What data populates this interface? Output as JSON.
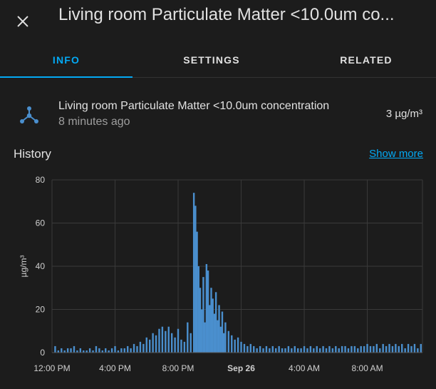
{
  "dialog": {
    "title": "Living room Particulate Matter <10.0um co...",
    "close_icon": "close-icon"
  },
  "tabs": [
    {
      "label": "INFO",
      "active": true
    },
    {
      "label": "SETTINGS",
      "active": false
    },
    {
      "label": "RELATED",
      "active": false
    }
  ],
  "entity": {
    "icon": "molecule-icon",
    "name": "Living room Particulate Matter <10.0um concentration",
    "last_changed": "8 minutes ago",
    "state": "3 µg/m³"
  },
  "history": {
    "title": "History",
    "show_more": "Show more"
  },
  "colors": {
    "accent": "#03a9f4",
    "series": "#4a8fce",
    "background": "#1c1c1c"
  },
  "chart_data": {
    "type": "bar",
    "ylabel": "µg/m³",
    "ylim": [
      0,
      80
    ],
    "yticks": [
      "0",
      "20",
      "40",
      "60",
      "80"
    ],
    "xticks": [
      "12:00 PM",
      "4:00 PM",
      "8:00 PM",
      "Sep 26",
      "4:00 AM",
      "8:00 AM"
    ],
    "xticks_bold": [
      "Sep 26"
    ],
    "grid": true,
    "x_hours": [
      0,
      4,
      8,
      12,
      16,
      20
    ],
    "x_range_hours": [
      0,
      23.5
    ],
    "series": [
      {
        "points": [
          [
            0.2,
            3
          ],
          [
            0.4,
            1
          ],
          [
            0.6,
            2
          ],
          [
            0.8,
            1
          ],
          [
            1.0,
            2
          ],
          [
            1.2,
            2
          ],
          [
            1.4,
            3
          ],
          [
            1.6,
            1
          ],
          [
            1.8,
            2
          ],
          [
            2.0,
            1
          ],
          [
            2.2,
            1
          ],
          [
            2.4,
            2
          ],
          [
            2.6,
            1
          ],
          [
            2.8,
            3
          ],
          [
            3.0,
            2
          ],
          [
            3.2,
            1
          ],
          [
            3.4,
            2
          ],
          [
            3.6,
            1
          ],
          [
            3.8,
            2
          ],
          [
            4.0,
            3
          ],
          [
            4.2,
            1
          ],
          [
            4.4,
            2
          ],
          [
            4.6,
            2
          ],
          [
            4.8,
            3
          ],
          [
            5.0,
            2
          ],
          [
            5.2,
            4
          ],
          [
            5.4,
            3
          ],
          [
            5.6,
            5
          ],
          [
            5.8,
            4
          ],
          [
            6.0,
            7
          ],
          [
            6.2,
            6
          ],
          [
            6.4,
            9
          ],
          [
            6.6,
            8
          ],
          [
            6.8,
            11
          ],
          [
            7.0,
            12
          ],
          [
            7.2,
            10
          ],
          [
            7.4,
            12
          ],
          [
            7.6,
            9
          ],
          [
            7.8,
            7
          ],
          [
            8.0,
            11
          ],
          [
            8.2,
            6
          ],
          [
            8.4,
            5
          ],
          [
            8.6,
            14
          ],
          [
            8.8,
            9
          ],
          [
            9.0,
            74
          ],
          [
            9.1,
            68
          ],
          [
            9.2,
            56
          ],
          [
            9.3,
            40
          ],
          [
            9.4,
            30
          ],
          [
            9.5,
            20
          ],
          [
            9.6,
            35
          ],
          [
            9.7,
            14
          ],
          [
            9.8,
            41
          ],
          [
            9.9,
            38
          ],
          [
            10.0,
            22
          ],
          [
            10.1,
            30
          ],
          [
            10.2,
            25
          ],
          [
            10.3,
            18
          ],
          [
            10.4,
            28
          ],
          [
            10.5,
            15
          ],
          [
            10.6,
            22
          ],
          [
            10.7,
            12
          ],
          [
            10.8,
            19
          ],
          [
            10.9,
            9
          ],
          [
            11.0,
            14
          ],
          [
            11.2,
            10
          ],
          [
            11.4,
            8
          ],
          [
            11.6,
            6
          ],
          [
            11.8,
            7
          ],
          [
            12.0,
            5
          ],
          [
            12.2,
            4
          ],
          [
            12.4,
            3
          ],
          [
            12.6,
            4
          ],
          [
            12.8,
            3
          ],
          [
            13.0,
            2
          ],
          [
            13.2,
            3
          ],
          [
            13.4,
            2
          ],
          [
            13.6,
            3
          ],
          [
            13.8,
            2
          ],
          [
            14.0,
            3
          ],
          [
            14.2,
            2
          ],
          [
            14.4,
            3
          ],
          [
            14.6,
            2
          ],
          [
            14.8,
            2
          ],
          [
            15.0,
            3
          ],
          [
            15.2,
            2
          ],
          [
            15.4,
            3
          ],
          [
            15.6,
            2
          ],
          [
            15.8,
            2
          ],
          [
            16.0,
            3
          ],
          [
            16.2,
            2
          ],
          [
            16.4,
            3
          ],
          [
            16.6,
            2
          ],
          [
            16.8,
            3
          ],
          [
            17.0,
            2
          ],
          [
            17.2,
            3
          ],
          [
            17.4,
            2
          ],
          [
            17.6,
            3
          ],
          [
            17.8,
            2
          ],
          [
            18.0,
            3
          ],
          [
            18.2,
            2
          ],
          [
            18.4,
            3
          ],
          [
            18.6,
            3
          ],
          [
            18.8,
            2
          ],
          [
            19.0,
            3
          ],
          [
            19.2,
            3
          ],
          [
            19.4,
            2
          ],
          [
            19.6,
            3
          ],
          [
            19.8,
            3
          ],
          [
            20.0,
            4
          ],
          [
            20.2,
            3
          ],
          [
            20.4,
            3
          ],
          [
            20.6,
            4
          ],
          [
            20.8,
            2
          ],
          [
            21.0,
            4
          ],
          [
            21.2,
            3
          ],
          [
            21.4,
            4
          ],
          [
            21.6,
            3
          ],
          [
            21.8,
            4
          ],
          [
            22.0,
            3
          ],
          [
            22.2,
            4
          ],
          [
            22.4,
            2
          ],
          [
            22.6,
            4
          ],
          [
            22.8,
            3
          ],
          [
            23.0,
            4
          ],
          [
            23.2,
            2
          ],
          [
            23.4,
            4
          ]
        ]
      }
    ]
  }
}
